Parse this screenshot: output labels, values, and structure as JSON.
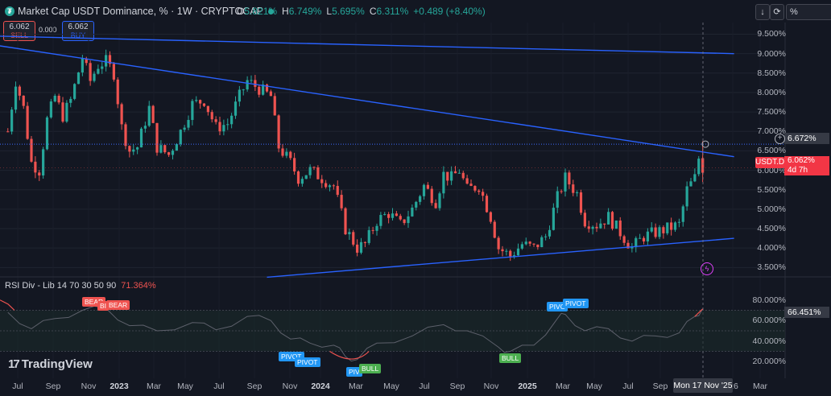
{
  "header": {
    "title": "Market Cap USDT Dominance, % · 1W · CRYPTOCAP",
    "ohlc": [
      {
        "k": "O",
        "v": "5.821%"
      },
      {
        "k": "H",
        "v": "6.749%"
      },
      {
        "k": "L",
        "v": "5.695%"
      },
      {
        "k": "C",
        "v": "6.311%"
      },
      {
        "k": "",
        "v": "+0.489 (+8.40%)"
      }
    ],
    "sell_price": "6.062",
    "sell_label": "SELL",
    "buy_price": "6.062",
    "buy_label": "BUY",
    "spread": "0.000",
    "toolbar": {
      "arrow": "↓",
      "percent": "%"
    }
  },
  "colors": {
    "up": "#26a69a",
    "down": "#ef5350",
    "trend": "#2962ff",
    "bg": "#131722"
  },
  "price_axis": [
    "9.500%",
    "9.000%",
    "8.500%",
    "8.000%",
    "7.500%",
    "7.000%",
    "6.500%",
    "6.000%",
    "5.500%",
    "5.000%",
    "4.500%",
    "4.000%",
    "3.500%"
  ],
  "crosshair_price": "6.672%",
  "current": {
    "symbol": "USDT.D",
    "price": "6.062%",
    "countdown": "4d 7h"
  },
  "time_axis": [
    {
      "label": "Jul",
      "year": false
    },
    {
      "label": "Sep",
      "year": false
    },
    {
      "label": "Nov",
      "year": false
    },
    {
      "label": "2023",
      "year": true
    },
    {
      "label": "Mar",
      "year": false
    },
    {
      "label": "May",
      "year": false
    },
    {
      "label": "Jul",
      "year": false
    },
    {
      "label": "Sep",
      "year": false
    },
    {
      "label": "Nov",
      "year": false
    },
    {
      "label": "2024",
      "year": true
    },
    {
      "label": "Mar",
      "year": false
    },
    {
      "label": "May",
      "year": false
    },
    {
      "label": "Jul",
      "year": false
    },
    {
      "label": "Sep",
      "year": false
    },
    {
      "label": "Nov",
      "year": false
    },
    {
      "label": "2025",
      "year": true
    },
    {
      "label": "Mar",
      "year": false
    },
    {
      "label": "May",
      "year": false
    },
    {
      "label": "Jul",
      "year": false
    },
    {
      "label": "Sep",
      "year": false
    },
    {
      "label": "'26",
      "year": false
    },
    {
      "label": "Mar",
      "year": false
    }
  ],
  "crosshair_date": "Mon 17 Nov '25",
  "rsi": {
    "title": "RSI Div - Lib 14 70 30 50 90",
    "value": "71.364%",
    "axis": [
      "80.000%",
      "60.000%",
      "40.000%",
      "20.000%"
    ],
    "crosshair_value": "66.451%",
    "signals": [
      {
        "text": "BEAR",
        "kind": "bear"
      },
      {
        "text": "BEAR",
        "kind": "bear"
      },
      {
        "text": "BI",
        "kind": "bear"
      },
      {
        "text": "PIVOT",
        "kind": "pivot"
      },
      {
        "text": "PIVOT",
        "kind": "pivot"
      },
      {
        "text": "PIV",
        "kind": "pivot"
      },
      {
        "text": "BULL",
        "kind": "bull"
      },
      {
        "text": "BULL",
        "kind": "bull"
      },
      {
        "text": "PIVO",
        "kind": "pivot"
      },
      {
        "text": "PIVOT",
        "kind": "pivot"
      }
    ]
  },
  "brand": "TradingView",
  "chart_data": {
    "type": "candlestick",
    "title": "Market Cap USDT Dominance, % · 1W · CRYPTOCAP",
    "ylim": [
      3.3,
      9.8
    ],
    "xlim": [
      "2022-06-13",
      "2026-04-13"
    ],
    "grid": true,
    "trendlines": [
      {
        "from": [
          "2022-06-13",
          9.45
        ],
        "to": [
          "2026-01-12",
          9.0
        ]
      },
      {
        "from": [
          "2022-06-13",
          9.2
        ],
        "to": [
          "2026-01-12",
          6.35
        ]
      },
      {
        "from": [
          "2023-10-02",
          3.25
        ],
        "to": [
          "2026-01-12",
          4.25
        ]
      }
    ],
    "horizontal_line": 6.672,
    "close_path": [
      [
        "2022-06-27",
        7.0
      ],
      [
        "2022-07-11",
        8.3
      ],
      [
        "2022-07-25",
        7.6
      ],
      [
        "2022-08-08",
        6.2
      ],
      [
        "2022-08-22",
        6.0
      ],
      [
        "2022-09-05",
        7.3
      ],
      [
        "2022-09-19",
        7.9
      ],
      [
        "2022-10-03",
        7.4
      ],
      [
        "2022-10-17",
        7.8
      ],
      [
        "2022-11-07",
        8.9
      ],
      [
        "2022-11-21",
        8.3
      ],
      [
        "2022-12-05",
        8.7
      ],
      [
        "2022-12-19",
        8.8
      ],
      [
        "2023-01-02",
        8.5
      ],
      [
        "2023-01-16",
        7.1
      ],
      [
        "2023-01-30",
        6.5
      ],
      [
        "2023-02-13",
        6.6
      ],
      [
        "2023-03-06",
        7.6
      ],
      [
        "2023-03-20",
        6.6
      ],
      [
        "2023-04-10",
        6.4
      ],
      [
        "2023-05-01",
        7.0
      ],
      [
        "2023-05-22",
        7.7
      ],
      [
        "2023-06-12",
        7.8
      ],
      [
        "2023-07-03",
        7.1
      ],
      [
        "2023-07-24",
        7.2
      ],
      [
        "2023-08-14",
        7.9
      ],
      [
        "2023-08-28",
        8.3
      ],
      [
        "2023-09-18",
        8.1
      ],
      [
        "2023-10-09",
        7.9
      ],
      [
        "2023-10-23",
        6.6
      ],
      [
        "2023-11-13",
        6.2
      ],
      [
        "2023-11-27",
        5.8
      ],
      [
        "2023-12-18",
        6.0
      ],
      [
        "2024-01-08",
        5.8
      ],
      [
        "2024-01-29",
        5.6
      ],
      [
        "2024-02-19",
        4.5
      ],
      [
        "2024-03-11",
        4.0
      ],
      [
        "2024-03-25",
        4.1
      ],
      [
        "2024-04-15",
        4.7
      ],
      [
        "2024-05-06",
        4.9
      ],
      [
        "2024-05-27",
        4.6
      ],
      [
        "2024-06-17",
        5.0
      ],
      [
        "2024-07-08",
        5.6
      ],
      [
        "2024-07-29",
        5.2
      ],
      [
        "2024-08-12",
        5.9
      ],
      [
        "2024-08-26",
        5.8
      ],
      [
        "2024-09-09",
        6.0
      ],
      [
        "2024-09-23",
        5.5
      ],
      [
        "2024-10-14",
        5.6
      ],
      [
        "2024-11-04",
        4.8
      ],
      [
        "2024-11-18",
        4.0
      ],
      [
        "2024-12-09",
        3.8
      ],
      [
        "2024-12-30",
        4.1
      ],
      [
        "2025-01-20",
        4.0
      ],
      [
        "2025-02-10",
        4.3
      ],
      [
        "2025-03-03",
        5.3
      ],
      [
        "2025-03-17",
        5.8
      ],
      [
        "2025-04-07",
        5.4
      ],
      [
        "2025-04-21",
        4.7
      ],
      [
        "2025-05-12",
        4.6
      ],
      [
        "2025-06-02",
        4.8
      ],
      [
        "2025-06-23",
        4.4
      ],
      [
        "2025-07-14",
        4.0
      ],
      [
        "2025-08-04",
        4.3
      ],
      [
        "2025-08-25",
        4.4
      ],
      [
        "2025-09-15",
        4.5
      ],
      [
        "2025-10-06",
        4.6
      ],
      [
        "2025-10-20",
        5.5
      ],
      [
        "2025-11-03",
        5.8
      ],
      [
        "2025-11-10",
        6.31
      ],
      [
        "2025-11-17",
        6.06
      ]
    ],
    "rsi_indicator": {
      "levels": [
        70,
        50,
        30
      ],
      "path": [
        [
          "2022-06-27",
          68
        ],
        [
          "2022-08-08",
          52
        ],
        [
          "2022-09-19",
          62
        ],
        [
          "2022-11-07",
          70
        ],
        [
          "2022-12-19",
          72
        ],
        [
          "2023-01-30",
          55
        ],
        [
          "2023-03-20",
          50
        ],
        [
          "2023-05-22",
          58
        ],
        [
          "2023-07-03",
          51
        ],
        [
          "2023-08-28",
          64
        ],
        [
          "2023-10-09",
          60
        ],
        [
          "2023-11-13",
          42
        ],
        [
          "2023-12-18",
          38
        ],
        [
          "2024-01-29",
          36
        ],
        [
          "2024-02-19",
          25
        ],
        [
          "2024-03-11",
          22
        ],
        [
          "2024-04-15",
          38
        ],
        [
          "2024-06-17",
          45
        ],
        [
          "2024-08-12",
          56
        ],
        [
          "2024-09-23",
          50
        ],
        [
          "2024-11-18",
          34
        ],
        [
          "2024-12-09",
          30
        ],
        [
          "2025-01-20",
          36
        ],
        [
          "2025-03-03",
          62
        ],
        [
          "2025-03-17",
          66
        ],
        [
          "2025-04-21",
          50
        ],
        [
          "2025-06-02",
          52
        ],
        [
          "2025-07-14",
          40
        ],
        [
          "2025-08-25",
          45
        ],
        [
          "2025-10-06",
          48
        ],
        [
          "2025-11-03",
          64
        ],
        [
          "2025-11-17",
          71.364
        ]
      ]
    }
  }
}
